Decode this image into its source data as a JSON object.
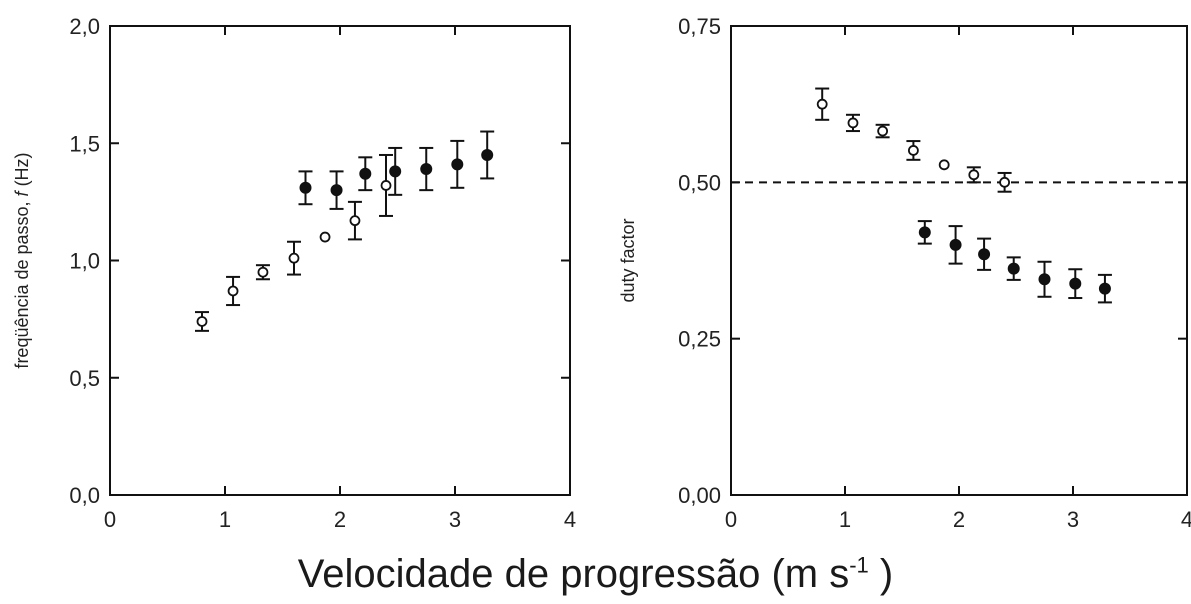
{
  "figure": {
    "xlabel_main": "Velocidade de progressão (m s",
    "xlabel_sup": "-1",
    "xlabel_tail": " )"
  },
  "chart_data": [
    {
      "type": "scatter",
      "title": "",
      "xlabel": "",
      "ylabel_prefix": "freqüência de passo, ",
      "ylabel_var": "f",
      "ylabel_suffix": " (Hz)",
      "xlim": [
        0,
        4
      ],
      "ylim": [
        0.0,
        2.0
      ],
      "x_ticks": [
        0,
        1,
        2,
        3,
        4
      ],
      "x_tick_labels": [
        "0",
        "1",
        "2",
        "3",
        "4"
      ],
      "y_ticks": [
        0.0,
        0.5,
        1.0,
        1.5,
        2.0
      ],
      "y_tick_labels": [
        "0,0",
        "0,5",
        "1,0",
        "1,5",
        "2,0"
      ],
      "grid": false,
      "series": [
        {
          "marker": "open-circle",
          "points": [
            {
              "x": 0.8,
              "y": 0.74,
              "err": 0.04
            },
            {
              "x": 1.07,
              "y": 0.87,
              "err": 0.06
            },
            {
              "x": 1.33,
              "y": 0.95,
              "err": 0.03
            },
            {
              "x": 1.6,
              "y": 1.01,
              "err": 0.07
            },
            {
              "x": 1.87,
              "y": 1.1,
              "err": 0
            },
            {
              "x": 2.13,
              "y": 1.17,
              "err": 0.08
            },
            {
              "x": 2.4,
              "y": 1.32,
              "err": 0.13
            }
          ]
        },
        {
          "marker": "filled-circle",
          "points": [
            {
              "x": 1.7,
              "y": 1.31,
              "err": 0.07
            },
            {
              "x": 1.97,
              "y": 1.3,
              "err": 0.08
            },
            {
              "x": 2.22,
              "y": 1.37,
              "err": 0.07
            },
            {
              "x": 2.48,
              "y": 1.38,
              "err": 0.1
            },
            {
              "x": 2.75,
              "y": 1.39,
              "err": 0.09
            },
            {
              "x": 3.02,
              "y": 1.41,
              "err": 0.1
            },
            {
              "x": 3.28,
              "y": 1.45,
              "err": 0.1
            }
          ]
        }
      ]
    },
    {
      "type": "scatter",
      "title": "",
      "xlabel": "",
      "ylabel": "duty factor",
      "xlim": [
        0,
        4
      ],
      "ylim": [
        0.0,
        0.75
      ],
      "x_ticks": [
        0,
        1,
        2,
        3,
        4
      ],
      "x_tick_labels": [
        "0",
        "1",
        "2",
        "3",
        "4"
      ],
      "y_ticks": [
        0.0,
        0.25,
        0.5,
        0.75
      ],
      "y_tick_labels": [
        "0,00",
        "0,25",
        "0,50",
        "0,75"
      ],
      "grid": false,
      "reference_line": {
        "y": 0.5,
        "style": "dashed"
      },
      "series": [
        {
          "marker": "open-circle",
          "points": [
            {
              "x": 0.8,
              "y": 0.625,
              "err": 0.025
            },
            {
              "x": 1.07,
              "y": 0.595,
              "err": 0.013
            },
            {
              "x": 1.33,
              "y": 0.582,
              "err": 0.01
            },
            {
              "x": 1.6,
              "y": 0.551,
              "err": 0.015
            },
            {
              "x": 1.87,
              "y": 0.528,
              "err": 0
            },
            {
              "x": 2.13,
              "y": 0.512,
              "err": 0.012
            },
            {
              "x": 2.4,
              "y": 0.5,
              "err": 0.015
            }
          ]
        },
        {
          "marker": "filled-circle",
          "points": [
            {
              "x": 1.7,
              "y": 0.42,
              "err": 0.018
            },
            {
              "x": 1.97,
              "y": 0.4,
              "err": 0.03
            },
            {
              "x": 2.22,
              "y": 0.385,
              "err": 0.025
            },
            {
              "x": 2.48,
              "y": 0.362,
              "err": 0.018
            },
            {
              "x": 2.75,
              "y": 0.345,
              "err": 0.028
            },
            {
              "x": 3.02,
              "y": 0.338,
              "err": 0.023
            },
            {
              "x": 3.28,
              "y": 0.33,
              "err": 0.022
            }
          ]
        }
      ]
    }
  ]
}
